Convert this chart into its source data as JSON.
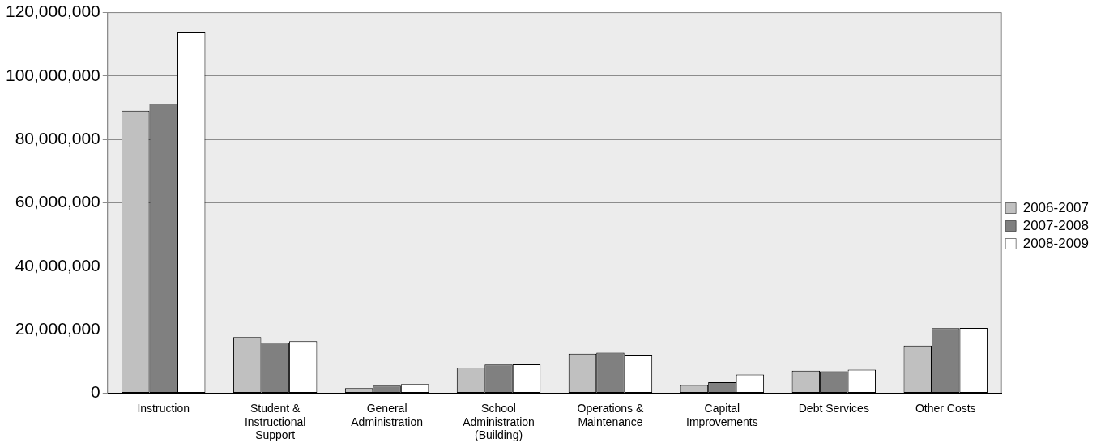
{
  "chart_data": {
    "type": "bar",
    "categories": [
      "Instruction",
      "Student & Instructional Support",
      "General Administration",
      "School Administration (Building)",
      "Operations & Maintenance",
      "Capital Improvements",
      "Debt Services",
      "Other Costs"
    ],
    "series": [
      {
        "name": "2006-2007",
        "color": "#c0c0c0",
        "values": [
          89100000,
          17700000,
          1600000,
          8100000,
          12500000,
          2600000,
          7100000,
          15000000
        ]
      },
      {
        "name": "2007-2008",
        "color": "#808080",
        "values": [
          91300000,
          15900000,
          2400000,
          9000000,
          12800000,
          3500000,
          6900000,
          20500000
        ]
      },
      {
        "name": "2008-2009",
        "color": "#ffffff",
        "values": [
          113800000,
          16400000,
          2900000,
          9100000,
          11900000,
          5900000,
          7400000,
          20600000
        ]
      }
    ],
    "ylim": [
      0,
      120000000
    ],
    "yticks": [
      {
        "value": 0,
        "label": "0"
      },
      {
        "value": 20000000,
        "label": "20,000,000"
      },
      {
        "value": 40000000,
        "label": "40,000,000"
      },
      {
        "value": 60000000,
        "label": "60,000,000"
      },
      {
        "value": 80000000,
        "label": "80,000,000"
      },
      {
        "value": 100000000,
        "label": "100,000,000"
      },
      {
        "value": 120000000,
        "label": "120,000,000"
      }
    ],
    "grid": "y",
    "legend": "right"
  }
}
